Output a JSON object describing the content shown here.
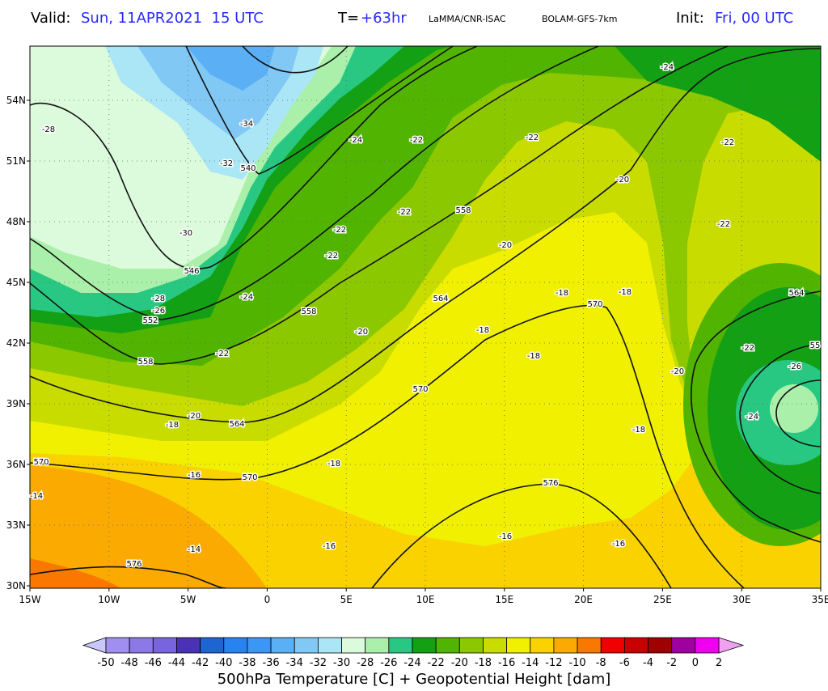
{
  "header": {
    "valid_label": "Valid:",
    "valid_time": "Sun, 11APR2021  15 UTC",
    "lead_label": "T=",
    "lead_value": "+63hr",
    "source": "LaMMA/CNR-ISAC",
    "model": "BOLAM-GFS-7km",
    "init_label": "Init:",
    "init_time": "Fri, 00 UTC"
  },
  "map": {
    "lat_labels": [
      "54N",
      "51N",
      "48N",
      "45N",
      "42N",
      "39N",
      "36N",
      "33N",
      "30N"
    ],
    "lon_labels": [
      "15W",
      "10W",
      "5W",
      "0",
      "5E",
      "10E",
      "15E",
      "20E",
      "25E",
      "30E",
      "35E"
    ],
    "temperature_labels": [
      "-28",
      "-34",
      "-32",
      "-30",
      "-28",
      "-26",
      "-24",
      "-22",
      "-22",
      "-24",
      "-22",
      "-20",
      "-22",
      "-22",
      "-22",
      "-20",
      "-22",
      "-24",
      "-20",
      "-22",
      "-18",
      "-18",
      "-18",
      "-18",
      "-22",
      "-26",
      "-20",
      "-24",
      "-18",
      "-20",
      "-18",
      "-18",
      "-16",
      "-14",
      "-16",
      "-14",
      "-16",
      "-16"
    ],
    "height_labels": [
      "540",
      "546",
      "552",
      "558",
      "558",
      "558",
      "564",
      "564",
      "570",
      "570",
      "570",
      "570",
      "576",
      "576",
      "564",
      "55"
    ]
  },
  "colorbar": {
    "labels": [
      -50,
      -48,
      -46,
      -44,
      -42,
      -40,
      -38,
      -36,
      -34,
      -32,
      -30,
      -28,
      -26,
      -24,
      -22,
      -20,
      -18,
      -16,
      -14,
      -12,
      -10,
      -8,
      -6,
      -4,
      -2,
      0,
      2
    ],
    "under_color": "#c8c8f8",
    "colors": [
      "#a08ef0",
      "#8c78e6",
      "#7864dc",
      "#4b32b4",
      "#1e64d2",
      "#2882f0",
      "#3c96f5",
      "#5aaff5",
      "#82c8f5",
      "#aae6f5",
      "#dcfadc",
      "#aaf0aa",
      "#28c882",
      "#14a014",
      "#50b400",
      "#8cc800",
      "#c8dc00",
      "#f0f000",
      "#fad200",
      "#faaa00",
      "#fa7800",
      "#f00000",
      "#c80000",
      "#a00000",
      "#a000a0",
      "#f000f0"
    ],
    "over_color": "#f0a0f0"
  },
  "footer": "500hPa Temperature [C] + Geopotential Height [dam]"
}
